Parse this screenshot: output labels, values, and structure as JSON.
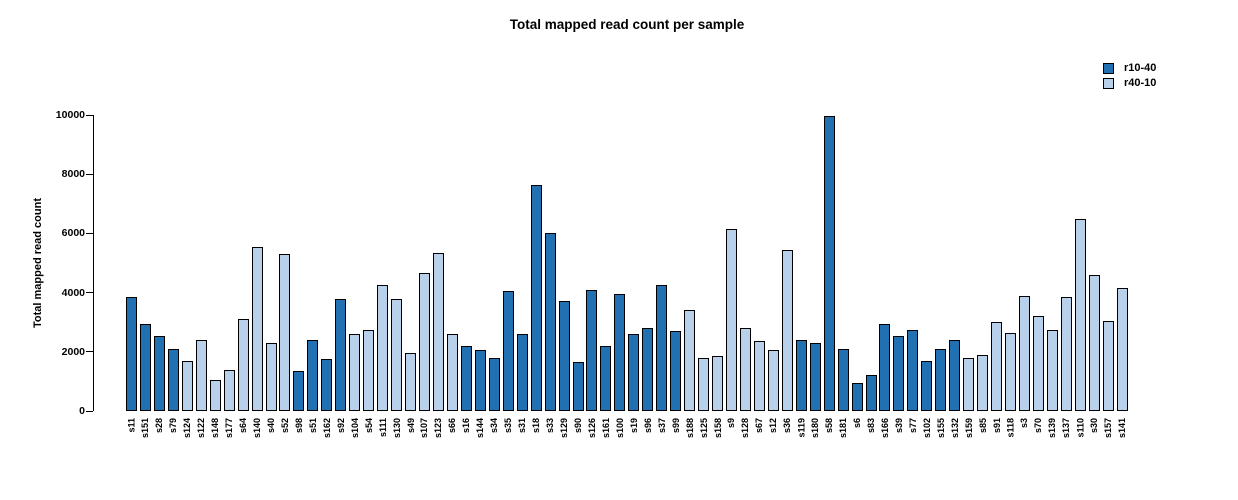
{
  "title": "Total mapped read count per sample",
  "y_axis": {
    "label": "Total mapped read count",
    "ticks": [
      0,
      2000,
      4000,
      6000,
      8000,
      10000
    ],
    "max": 10000
  },
  "legend": {
    "items": [
      {
        "label": "r10-40",
        "color": "#2171B2"
      },
      {
        "label": "r40-10",
        "color": "#B9D0EA"
      }
    ]
  },
  "chart_data": {
    "type": "bar",
    "title": "Total mapped read count per sample",
    "xlabel": "",
    "ylabel": "Total mapped read count",
    "ylim": [
      0,
      10000
    ],
    "yticks": [
      0,
      2000,
      4000,
      6000,
      8000,
      10000
    ],
    "grid": false,
    "legend_position": "top-right",
    "series": [
      {
        "name": "r10-40",
        "color": "#2171B2"
      },
      {
        "name": "r40-10",
        "color": "#B9D0EA"
      }
    ],
    "bars": [
      {
        "label": "s11",
        "value": 3850,
        "series": "r10-40"
      },
      {
        "label": "s151",
        "value": 2950,
        "series": "r10-40"
      },
      {
        "label": "s28",
        "value": 2550,
        "series": "r10-40"
      },
      {
        "label": "s79",
        "value": 2100,
        "series": "r10-40"
      },
      {
        "label": "s124",
        "value": 1700,
        "series": "r40-10"
      },
      {
        "label": "s122",
        "value": 2400,
        "series": "r40-10"
      },
      {
        "label": "s148",
        "value": 1050,
        "series": "r40-10"
      },
      {
        "label": "s177",
        "value": 1400,
        "series": "r40-10"
      },
      {
        "label": "s64",
        "value": 3100,
        "series": "r40-10"
      },
      {
        "label": "s140",
        "value": 5550,
        "series": "r40-10"
      },
      {
        "label": "s40",
        "value": 2300,
        "series": "r40-10"
      },
      {
        "label": "s52",
        "value": 5300,
        "series": "r40-10"
      },
      {
        "label": "s98",
        "value": 1350,
        "series": "r10-40"
      },
      {
        "label": "s51",
        "value": 2400,
        "series": "r10-40"
      },
      {
        "label": "s162",
        "value": 1750,
        "series": "r10-40"
      },
      {
        "label": "s92",
        "value": 3800,
        "series": "r10-40"
      },
      {
        "label": "s104",
        "value": 2600,
        "series": "r40-10"
      },
      {
        "label": "s54",
        "value": 2750,
        "series": "r40-10"
      },
      {
        "label": "s111",
        "value": 4250,
        "series": "r40-10"
      },
      {
        "label": "s130",
        "value": 3800,
        "series": "r40-10"
      },
      {
        "label": "s49",
        "value": 1950,
        "series": "r40-10"
      },
      {
        "label": "s107",
        "value": 4650,
        "series": "r40-10"
      },
      {
        "label": "s123",
        "value": 5350,
        "series": "r40-10"
      },
      {
        "label": "s66",
        "value": 2600,
        "series": "r40-10"
      },
      {
        "label": "s16",
        "value": 2200,
        "series": "r10-40"
      },
      {
        "label": "s144",
        "value": 2050,
        "series": "r10-40"
      },
      {
        "label": "s34",
        "value": 1800,
        "series": "r10-40"
      },
      {
        "label": "s35",
        "value": 4050,
        "series": "r10-40"
      },
      {
        "label": "s31",
        "value": 2600,
        "series": "r10-40"
      },
      {
        "label": "s18",
        "value": 7650,
        "series": "r10-40"
      },
      {
        "label": "s33",
        "value": 6000,
        "series": "r10-40"
      },
      {
        "label": "s129",
        "value": 3700,
        "series": "r10-40"
      },
      {
        "label": "s90",
        "value": 1650,
        "series": "r10-40"
      },
      {
        "label": "s126",
        "value": 4100,
        "series": "r10-40"
      },
      {
        "label": "s161",
        "value": 2200,
        "series": "r10-40"
      },
      {
        "label": "s100",
        "value": 3950,
        "series": "r10-40"
      },
      {
        "label": "s19",
        "value": 2600,
        "series": "r10-40"
      },
      {
        "label": "s96",
        "value": 2800,
        "series": "r10-40"
      },
      {
        "label": "s37",
        "value": 4250,
        "series": "r10-40"
      },
      {
        "label": "s99",
        "value": 2700,
        "series": "r10-40"
      },
      {
        "label": "s188",
        "value": 3400,
        "series": "r40-10"
      },
      {
        "label": "s125",
        "value": 1800,
        "series": "r40-10"
      },
      {
        "label": "s158",
        "value": 1850,
        "series": "r40-10"
      },
      {
        "label": "s9",
        "value": 6150,
        "series": "r40-10"
      },
      {
        "label": "s128",
        "value": 2800,
        "series": "r40-10"
      },
      {
        "label": "s67",
        "value": 2350,
        "series": "r40-10"
      },
      {
        "label": "s12",
        "value": 2050,
        "series": "r40-10"
      },
      {
        "label": "s36",
        "value": 5450,
        "series": "r40-10"
      },
      {
        "label": "s119",
        "value": 2400,
        "series": "r10-40"
      },
      {
        "label": "s180",
        "value": 2300,
        "series": "r10-40"
      },
      {
        "label": "s58",
        "value": 9950,
        "series": "r10-40"
      },
      {
        "label": "s181",
        "value": 2100,
        "series": "r10-40"
      },
      {
        "label": "s6",
        "value": 950,
        "series": "r10-40"
      },
      {
        "label": "s83",
        "value": 1200,
        "series": "r10-40"
      },
      {
        "label": "s166",
        "value": 2950,
        "series": "r10-40"
      },
      {
        "label": "s39",
        "value": 2550,
        "series": "r10-40"
      },
      {
        "label": "s77",
        "value": 2750,
        "series": "r10-40"
      },
      {
        "label": "s102",
        "value": 1700,
        "series": "r10-40"
      },
      {
        "label": "s155",
        "value": 2100,
        "series": "r10-40"
      },
      {
        "label": "s132",
        "value": 2400,
        "series": "r10-40"
      },
      {
        "label": "s159",
        "value": 1800,
        "series": "r40-10"
      },
      {
        "label": "s85",
        "value": 1900,
        "series": "r40-10"
      },
      {
        "label": "s91",
        "value": 3000,
        "series": "r40-10"
      },
      {
        "label": "s118",
        "value": 2650,
        "series": "r40-10"
      },
      {
        "label": "s3",
        "value": 3900,
        "series": "r40-10"
      },
      {
        "label": "s70",
        "value": 3200,
        "series": "r40-10"
      },
      {
        "label": "s139",
        "value": 2750,
        "series": "r40-10"
      },
      {
        "label": "s137",
        "value": 3850,
        "series": "r40-10"
      },
      {
        "label": "s110",
        "value": 6500,
        "series": "r40-10"
      },
      {
        "label": "s30",
        "value": 4600,
        "series": "r40-10"
      },
      {
        "label": "s157",
        "value": 3050,
        "series": "r40-10"
      },
      {
        "label": "s141",
        "value": 4150,
        "series": "r40-10"
      }
    ]
  }
}
